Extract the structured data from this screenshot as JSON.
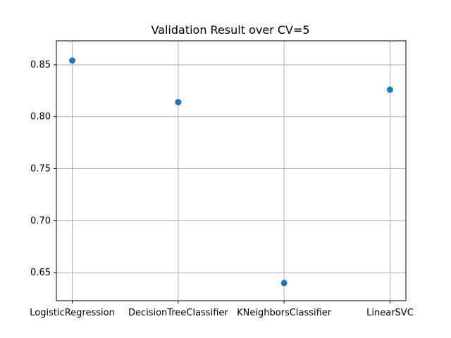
{
  "chart_data": {
    "type": "scatter",
    "title": "Validation Result over CV=5",
    "xlabel": "",
    "ylabel": "",
    "categories": [
      "LogisticRegression",
      "DecisionTreeClassifier",
      "KNeighborsClassifier",
      "LinearSVC"
    ],
    "values": [
      0.854,
      0.814,
      0.64,
      0.826
    ],
    "y_ticks": [
      0.65,
      0.7,
      0.75,
      0.8,
      0.85
    ],
    "y_tick_labels": [
      "0.65",
      "0.70",
      "0.75",
      "0.80",
      "0.85"
    ],
    "ylim": [
      0.623,
      0.873
    ],
    "grid": true,
    "marker_color": "#1f77b4"
  }
}
